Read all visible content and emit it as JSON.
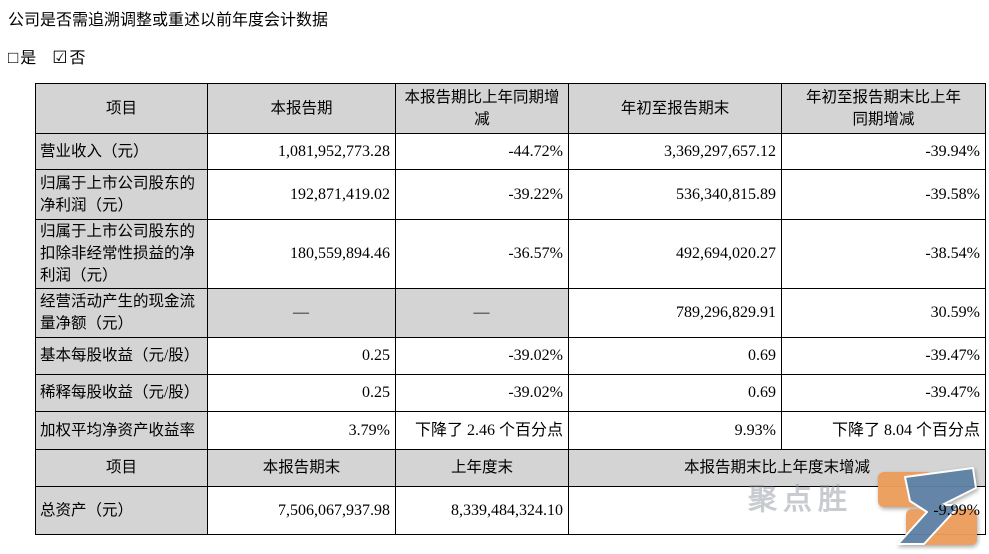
{
  "header": {
    "question": "公司是否需追溯调整或重述以前年度会计数据",
    "options": [
      {
        "symbol": "□",
        "label": "是",
        "checked": false
      },
      {
        "symbol": "☑",
        "label": "否",
        "checked": true
      }
    ]
  },
  "quarter_table": {
    "headers": [
      "项目",
      "本报告期",
      "本报告期比上年同期增\n减",
      "年初至报告期末",
      "年初至报告期末比上年\n同期增减"
    ],
    "rows": [
      [
        "营业收入（元）",
        "1,081,952,773.28",
        "-44.72%",
        "3,369,297,657.12",
        "-39.94%"
      ],
      [
        "归属于上市公司股东的净利润（元）",
        "192,871,419.02",
        "-39.22%",
        "536,340,815.89",
        "-39.58%"
      ],
      [
        "归属于上市公司股东的扣除非经常性损益的净利润（元）",
        "180,559,894.46",
        "-36.57%",
        "492,694,020.27",
        "-38.54%"
      ],
      [
        "经营活动产生的现金流量净额（元）",
        "—",
        "—",
        "789,296,829.91",
        "30.59%"
      ],
      [
        "基本每股收益（元/股）",
        "0.25",
        "-39.02%",
        "0.69",
        "-39.47%"
      ],
      [
        "稀释每股收益（元/股）",
        "0.25",
        "-39.02%",
        "0.69",
        "-39.47%"
      ],
      [
        "加权平均净资产收益率",
        "3.79%",
        "下降了 2.46 个百分点",
        "9.93%",
        "下降了 8.04 个百分点"
      ]
    ]
  },
  "yearend_table": {
    "headers": [
      "项目",
      "本报告期末",
      "上年度末",
      "本报告期末比上年度末增减"
    ],
    "rows": [
      [
        "总资产（元）",
        "7,506,067,937.98",
        "8,339,484,324.10",
        "-9.99%"
      ]
    ]
  },
  "watermark": {
    "text": "聚点胜",
    "logo_orange": "#EC9D5B",
    "logo_blue": "#5E81A4"
  }
}
